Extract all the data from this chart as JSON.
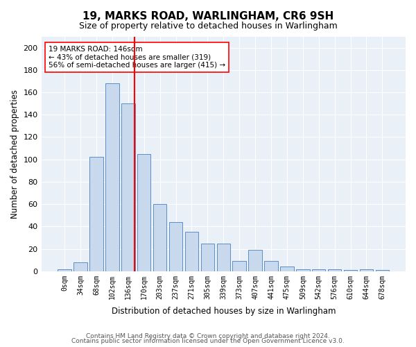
{
  "title1": "19, MARKS ROAD, WARLINGHAM, CR6 9SH",
  "title2": "Size of property relative to detached houses in Warlingham",
  "xlabel": "Distribution of detached houses by size in Warlingham",
  "ylabel": "Number of detached properties",
  "bar_color": "#c9d9ed",
  "bar_edge_color": "#5b8ec4",
  "bg_color": "#eaf0f8",
  "grid_color": "#ffffff",
  "categories": [
    "0sqm",
    "34sqm",
    "68sqm",
    "102sqm",
    "136sqm",
    "170sqm",
    "203sqm",
    "237sqm",
    "271sqm",
    "305sqm",
    "339sqm",
    "373sqm",
    "407sqm",
    "441sqm",
    "475sqm",
    "509sqm",
    "542sqm",
    "576sqm",
    "610sqm",
    "644sqm",
    "678sqm"
  ],
  "values": [
    2,
    8,
    102,
    168,
    150,
    105,
    60,
    44,
    35,
    25,
    25,
    9,
    19,
    9,
    4,
    2,
    2,
    2,
    1,
    2,
    1
  ],
  "red_line_x": 4.42,
  "annotation_text": "19 MARKS ROAD: 146sqm\n← 43% of detached houses are smaller (319)\n56% of semi-detached houses are larger (415) →",
  "footer1": "Contains HM Land Registry data © Crown copyright and database right 2024.",
  "footer2": "Contains public sector information licensed under the Open Government Licence v3.0.",
  "ylim": [
    0,
    210
  ],
  "yticks": [
    0,
    20,
    40,
    60,
    80,
    100,
    120,
    140,
    160,
    180,
    200
  ]
}
